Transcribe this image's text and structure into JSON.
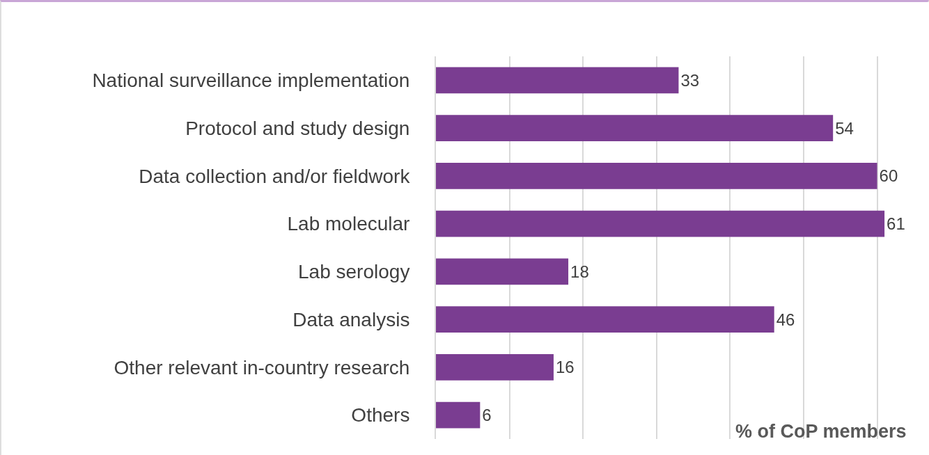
{
  "chart_data": {
    "type": "bar",
    "orientation": "horizontal",
    "xlabel": "% of CoP members",
    "categories": [
      "National surveillance implementation",
      "Protocol and study design",
      "Data collection and/or fieldwork",
      "Lab molecular",
      "Lab serology",
      "Data analysis",
      "Other relevant in-country research",
      "Others"
    ],
    "values": [
      33,
      54,
      60,
      61,
      18,
      46,
      16,
      6
    ],
    "color": "#7a3d91",
    "data_labels": true,
    "grid": "x",
    "tick_labels": "y"
  }
}
